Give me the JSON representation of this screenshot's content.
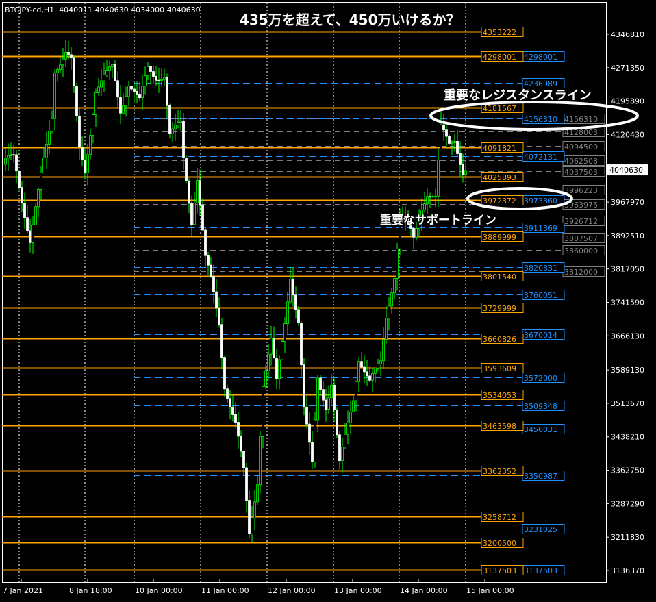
{
  "header": {
    "symbol": "BTCJPY-cd,H1",
    "ohlc": "4040011 4040630 4034000 4040630"
  },
  "annotations": {
    "title": "435万を超えて、450万いけるか？",
    "resistance": "重要なレジスタンスライン",
    "support": "重要なサポートライン"
  },
  "colors": {
    "background": "#000000",
    "orange": "#FFA500",
    "blue": "#1E90FF",
    "gray": "#808080",
    "bull": "#00FF00",
    "bear_body": "#FFFFFF",
    "grid": "#FFFFFF"
  },
  "chart_data": {
    "type": "candlestick",
    "timeframe": "H1",
    "ylim": [
      3105000,
      4375000
    ],
    "grid": "vertical dotted",
    "current_price": "4040630",
    "y_tick_labels": [
      "4346810",
      "4271350",
      "4195890",
      "4120430",
      "3967970",
      "3892510",
      "3817050",
      "3741590",
      "3666130",
      "3589130",
      "3513670",
      "3438210",
      "3362750",
      "3287290",
      "3211830",
      "3136370"
    ],
    "x_tick_labels": [
      "7 Jan 2021",
      "8 Jan 18:00",
      "10 Jan 00:00",
      "11 Jan 00:00",
      "12 Jan 00:00",
      "13 Jan 00:00",
      "14 Jan 00:00",
      "15 Jan 00:00"
    ],
    "price_path": [
      [
        "2021-01-07T23:00",
        4053000
      ],
      [
        "2021-01-08T03:00",
        4068500
      ],
      [
        "2021-01-08T09:00",
        3883000
      ],
      [
        "2021-01-08T13:00",
        4022000
      ],
      [
        "2021-01-08T17:00",
        4161000
      ],
      [
        "2021-01-08T18:00",
        4269500
      ],
      [
        "2021-01-08T22:00",
        4308000
      ],
      [
        "2021-01-09T00:00",
        4285000
      ],
      [
        "2021-01-09T03:00",
        4084000
      ],
      [
        "2021-01-09T05:00",
        4037600
      ],
      [
        "2021-01-09T09:00",
        4223000
      ],
      [
        "2021-01-09T13:00",
        4254000
      ],
      [
        "2021-01-09T15:00",
        4269500
      ],
      [
        "2021-01-09T18:00",
        4176800
      ],
      [
        "2021-01-09T21:00",
        4238600
      ],
      [
        "2021-01-10T01:00",
        4192200
      ],
      [
        "2021-01-10T04:00",
        4269500
      ],
      [
        "2021-01-10T07:00",
        4254000
      ],
      [
        "2021-01-10T10:00",
        4254000
      ],
      [
        "2021-01-10T12:00",
        4114900
      ],
      [
        "2021-01-10T16:00",
        4145800
      ],
      [
        "2021-01-10T17:00",
        4068500
      ],
      [
        "2021-01-10T20:00",
        3929400
      ],
      [
        "2021-01-10T22:00",
        4022200
      ],
      [
        "2021-01-11T01:00",
        3836700
      ],
      [
        "2021-01-11T03:00",
        3790300
      ],
      [
        "2021-01-11T06:00",
        3697500
      ],
      [
        "2021-01-11T08:00",
        3558400
      ],
      [
        "2021-01-11T12:00",
        3465600
      ],
      [
        "2021-01-11T15:00",
        3357400
      ],
      [
        "2021-01-11T17:00",
        3218300
      ],
      [
        "2021-01-11T20:00",
        3342000
      ],
      [
        "2021-01-11T22:00",
        3558400
      ],
      [
        "2021-01-12T01:00",
        3651200
      ],
      [
        "2021-01-12T03:00",
        3558400
      ],
      [
        "2021-01-12T06:00",
        3697500
      ],
      [
        "2021-01-12T08:00",
        3805700
      ],
      [
        "2021-01-12T11:00",
        3697500
      ],
      [
        "2021-01-12T13:00",
        3496600
      ],
      [
        "2021-01-12T16:00",
        3372900
      ],
      [
        "2021-01-12T18:00",
        3573900
      ],
      [
        "2021-01-12T21:00",
        3512000
      ],
      [
        "2021-01-12T23:00",
        3558400
      ],
      [
        "2021-01-13T02:00",
        3372900
      ],
      [
        "2021-01-13T04:00",
        3434700
      ],
      [
        "2021-01-13T07:00",
        3527500
      ],
      [
        "2021-01-13T09:00",
        3620200
      ],
      [
        "2021-01-13T13:00",
        3558400
      ],
      [
        "2021-01-13T17:00",
        3604800
      ],
      [
        "2021-01-13T19:00",
        3713000
      ],
      [
        "2021-01-13T22:00",
        3805700
      ],
      [
        "2021-01-14T00:00",
        3929400
      ],
      [
        "2021-01-14T03:00",
        3914000
      ],
      [
        "2021-01-14T05:00",
        3883000
      ],
      [
        "2021-01-14T08:00",
        3960300
      ],
      [
        "2021-01-14T10:00",
        3991300
      ],
      [
        "2021-01-14T13:00",
        3975800
      ],
      [
        "2021-01-14T15:00",
        4130400
      ],
      [
        "2021-01-14T18:00",
        4099500
      ],
      [
        "2021-01-14T20:00",
        4114900
      ],
      [
        "2021-01-14T23:00",
        4037600
      ],
      [
        "2021-01-15T00:00",
        4040630
      ]
    ],
    "levels": {
      "orange": [
        "4353222",
        "4298001",
        "4181567",
        "4091821",
        "4025893",
        "3972372",
        "3889999",
        "3801540",
        "3729999",
        "3660826",
        "3593609",
        "3534053",
        "3463598",
        "3362352",
        "3258712",
        "3200500",
        "3137503"
      ],
      "blue": [
        "4298001",
        "4236989",
        "4156310",
        "4072131",
        "3973360",
        "3911369",
        "3820831",
        "3760051",
        "3670014",
        "3572000",
        "3509348",
        "3456031",
        "3350987",
        "3231025",
        "3137503"
      ],
      "gray": [
        "4156310",
        "4128003",
        "4094500",
        "4062508",
        "4037503",
        "3996223",
        "3963975",
        "3926712",
        "3887507",
        "3860000",
        "3812000"
      ]
    }
  }
}
